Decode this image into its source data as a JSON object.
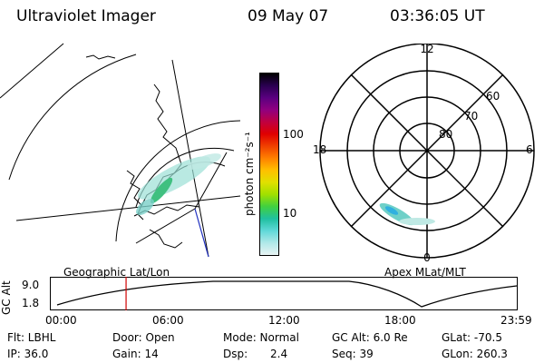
{
  "header": {
    "instrument": "Ultraviolet Imager",
    "date": "09 May 07",
    "time": "03:36:05 UT"
  },
  "colorbar": {
    "unit_label": "photon cm⁻²s⁻¹",
    "ticks": [
      "100",
      "10"
    ],
    "colors": [
      "#000000",
      "#2a0050",
      "#5a0080",
      "#900080",
      "#c00040",
      "#e00000",
      "#f04000",
      "#ff8000",
      "#ffc000",
      "#e0e000",
      "#a0e000",
      "#40d040",
      "#20c0a0",
      "#60d8d8",
      "#b0e8e8",
      "#e8f4f4"
    ]
  },
  "polar_plot": {
    "mlt_labels": {
      "top": "12",
      "left": "18",
      "right": "6",
      "bottom": "0"
    },
    "lat_labels": [
      "60",
      "70",
      "80"
    ]
  },
  "geo_label": "Geographic Lat/Lon",
  "apex_label": "Apex MLat/MLT",
  "altitude_plot": {
    "axis_title": "GC Alt",
    "y_ticks": [
      "9.0",
      "1.8"
    ],
    "x_ticks": [
      "00:00",
      "06:00",
      "12:00",
      "18:00",
      "23:59"
    ],
    "marker_time": "03:36"
  },
  "info": {
    "flt": "Flt: LBHL",
    "door": "Door: Open",
    "mode": "Mode: Normal",
    "gcalt": "GC Alt: 6.0 Re",
    "glat": "GLat: -70.5",
    "ip": "IP: 36.0",
    "gain": "Gain: 14",
    "dsp_label": "Dsp:",
    "dsp_value": "2.4",
    "seq": "Seq: 39",
    "glon": "GLon: 260.3"
  }
}
